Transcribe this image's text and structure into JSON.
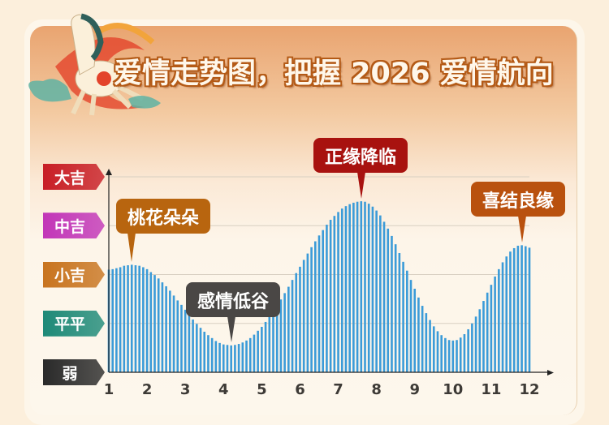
{
  "header": {
    "title": "爱情走势图，把握 2026 爱情航向"
  },
  "colors": {
    "bar": "#3b9bd8",
    "gridline": "#d8cfc2",
    "axis": "#222222"
  },
  "levels": [
    {
      "label": "弱",
      "value": 0,
      "color": "#2a2a2a"
    },
    {
      "label": "平平",
      "value": 1,
      "color": "#1e8a78"
    },
    {
      "label": "小吉",
      "value": 2,
      "color": "#c8741f"
    },
    {
      "label": "中吉",
      "value": 3,
      "color": "#c236b8"
    },
    {
      "label": "大吉",
      "value": 4,
      "color": "#c81e26"
    }
  ],
  "callouts": [
    {
      "label": "桃花朵朵",
      "month": 1.6,
      "color": "#b8650f"
    },
    {
      "label": "感情低谷",
      "month": 4.2,
      "color": "#4a4745"
    },
    {
      "label": "正缘降临",
      "month": 7.6,
      "color": "#a8120f"
    },
    {
      "label": "喜结良缘",
      "month": 11.8,
      "color": "#b9510e"
    }
  ],
  "chart_data": {
    "type": "bar",
    "title": "爱情走势图，把握 2026 爱情航向",
    "xlabel": "",
    "ylabel": "",
    "x_ticks": [
      "1",
      "2",
      "3",
      "4",
      "5",
      "6",
      "7",
      "8",
      "9",
      "10",
      "11",
      "12"
    ],
    "y_ticks": [
      "弱",
      "平平",
      "小吉",
      "中吉",
      "大吉"
    ],
    "xlim": [
      1,
      12
    ],
    "ylim": [
      0,
      4
    ],
    "grid": true,
    "x_start": 1,
    "x_step": 0.1,
    "values": [
      2.1,
      2.11,
      2.13,
      2.15,
      2.18,
      2.19,
      2.2,
      2.19,
      2.18,
      2.15,
      2.11,
      2.05,
      1.99,
      1.92,
      1.84,
      1.76,
      1.67,
      1.57,
      1.47,
      1.38,
      1.28,
      1.18,
      1.08,
      0.99,
      0.91,
      0.83,
      0.76,
      0.7,
      0.64,
      0.6,
      0.57,
      0.56,
      0.55,
      0.56,
      0.58,
      0.61,
      0.65,
      0.7,
      0.77,
      0.85,
      0.93,
      1.03,
      1.14,
      1.25,
      1.37,
      1.49,
      1.62,
      1.75,
      1.89,
      2.03,
      2.16,
      2.3,
      2.43,
      2.56,
      2.68,
      2.8,
      2.91,
      3.02,
      3.12,
      3.2,
      3.28,
      3.35,
      3.4,
      3.44,
      3.47,
      3.49,
      3.5,
      3.49,
      3.45,
      3.39,
      3.31,
      3.21,
      3.08,
      2.94,
      2.79,
      2.62,
      2.44,
      2.26,
      2.08,
      1.89,
      1.71,
      1.53,
      1.36,
      1.21,
      1.07,
      0.94,
      0.84,
      0.76,
      0.7,
      0.66,
      0.65,
      0.66,
      0.71,
      0.78,
      0.88,
      1.0,
      1.14,
      1.29,
      1.46,
      1.63,
      1.79,
      1.96,
      2.11,
      2.25,
      2.37,
      2.47,
      2.54,
      2.59,
      2.6,
      2.58,
      2.55
    ]
  }
}
